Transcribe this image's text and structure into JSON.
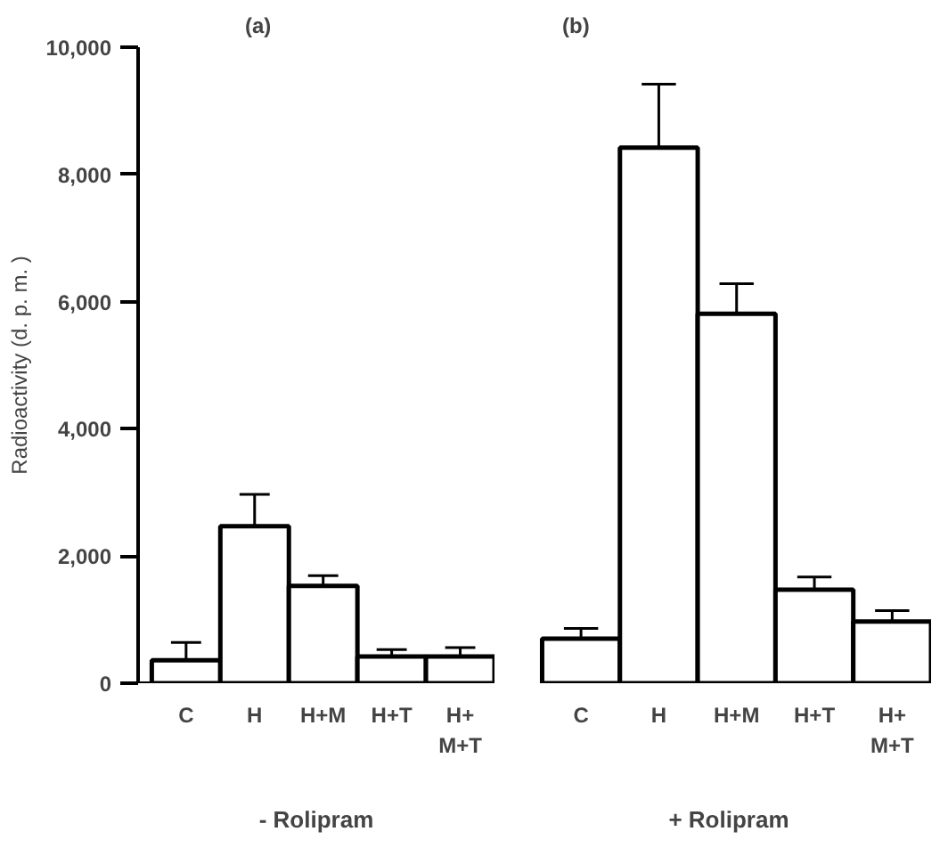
{
  "chart_data": [
    {
      "type": "bar",
      "title": "(a)",
      "xlabel": "- Rolipram",
      "ylabel": "Radioactivity (d. p. m. )",
      "categories": [
        "C",
        "H",
        "H+M",
        "H+T",
        "H+\nM+T"
      ],
      "values": [
        360,
        2470,
        1530,
        420,
        420
      ],
      "color": "#ffffff",
      "errors": [
        [
          360,
          640
        ],
        [
          2470,
          2970
        ],
        [
          1530,
          1690
        ],
        [
          420,
          530
        ],
        [
          420,
          560
        ]
      ],
      "ylim": [
        0,
        10000
      ],
      "yticks": [
        0,
        {
          "value": 2000,
          "label": "2,000"
        },
        {
          "value": 4000,
          "label": "4,000"
        },
        {
          "value": 6000,
          "label": "6,000"
        },
        {
          "value": 8000,
          "label": "8,000"
        },
        {
          "value": 10000,
          "label": "10,000"
        }
      ],
      "grid": false
    },
    {
      "type": "bar",
      "title": "(b)",
      "xlabel": "+ Rolipram",
      "categories": [
        "C",
        "H",
        "H+M",
        "H+T",
        "H+\nM+T"
      ],
      "values": [
        700,
        8420,
        5810,
        1470,
        970
      ],
      "color": "#ffffff",
      "errors": [
        [
          700,
          860
        ],
        [
          8420,
          9420
        ],
        [
          5810,
          6280
        ],
        [
          1470,
          1670
        ],
        [
          970,
          1140
        ]
      ],
      "ylim": [
        0,
        10000
      ],
      "tick_labels": "x",
      "grid": false
    }
  ]
}
